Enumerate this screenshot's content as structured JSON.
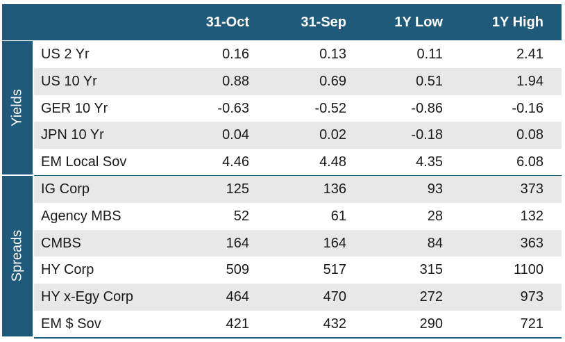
{
  "header": {
    "columns": [
      "31-Oct",
      "31-Sep",
      "1Y Low",
      "1Y High"
    ]
  },
  "groups": [
    {
      "label": "Yields",
      "rows": [
        {
          "name": "US 2 Yr",
          "values": [
            "0.16",
            "0.13",
            "0.11",
            "2.41"
          ]
        },
        {
          "name": "US 10 Yr",
          "values": [
            "0.88",
            "0.69",
            "0.51",
            "1.94"
          ]
        },
        {
          "name": "GER 10 Yr",
          "values": [
            "-0.63",
            "-0.52",
            "-0.86",
            "-0.16"
          ]
        },
        {
          "name": "JPN 10 Yr",
          "values": [
            "0.04",
            "0.02",
            "-0.18",
            "0.08"
          ]
        },
        {
          "name": "EM Local Sov",
          "values": [
            "4.46",
            "4.48",
            "4.35",
            "6.08"
          ]
        }
      ]
    },
    {
      "label": "Spreads",
      "rows": [
        {
          "name": "IG Corp",
          "values": [
            "125",
            "136",
            "93",
            "373"
          ]
        },
        {
          "name": "Agency MBS",
          "values": [
            "52",
            "61",
            "28",
            "132"
          ]
        },
        {
          "name": "CMBS",
          "values": [
            "164",
            "164",
            "84",
            "363"
          ]
        },
        {
          "name": "HY Corp",
          "values": [
            "509",
            "517",
            "315",
            "1100"
          ]
        },
        {
          "name": "HY x-Egy Corp",
          "values": [
            "464",
            "470",
            "272",
            "973"
          ]
        },
        {
          "name": "EM $ Sov",
          "values": [
            "421",
            "432",
            "290",
            "721"
          ]
        }
      ]
    }
  ],
  "colors": {
    "header_bg": "#1f5a7a",
    "alt_row_bg": "#e8e8e8",
    "text": "#1a1a1a"
  }
}
